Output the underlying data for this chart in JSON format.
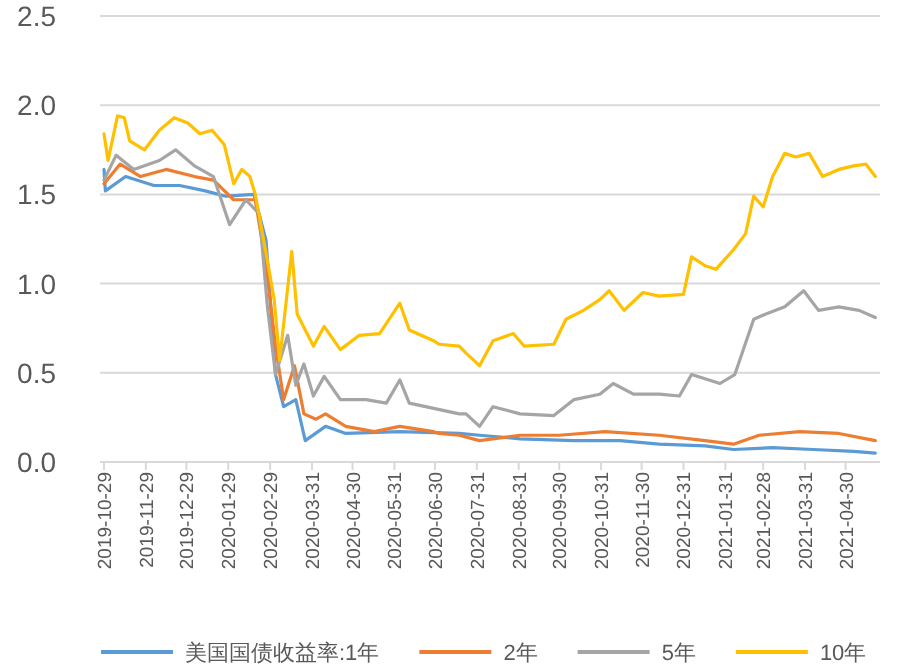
{
  "chart_data": {
    "type": "line",
    "xlim": [
      "2019-10-29",
      "2021-05-24"
    ],
    "xticks": [
      "2019-10-29",
      "2019-11-29",
      "2019-12-29",
      "2020-01-29",
      "2020-02-29",
      "2020-03-31",
      "2020-04-30",
      "2020-05-31",
      "2020-06-30",
      "2020-07-31",
      "2020-08-31",
      "2020-09-30",
      "2020-10-31",
      "2020-11-30",
      "2020-12-31",
      "2021-01-31",
      "2021-02-28",
      "2021-03-31",
      "2021-04-30"
    ],
    "ylim": [
      0,
      2.5
    ],
    "yticks": [
      {
        "value": 0,
        "label": "0.0"
      },
      {
        "value": 0.5,
        "label": "0.5"
      },
      {
        "value": 1,
        "label": "1.0"
      },
      {
        "value": 1.5,
        "label": "1.5"
      },
      {
        "value": 2,
        "label": "2.0"
      },
      {
        "value": 2.5,
        "label": "2.5"
      }
    ],
    "grid": "y",
    "legend": "bottom",
    "marker": "none",
    "line_style": "solid",
    "series": [
      {
        "name": "美国国债收益率:1年",
        "color": "#5b9bd5",
        "x": [
          "2019-10-29",
          "2019-10-30",
          "2019-11-14",
          "2019-12-05",
          "2019-12-24",
          "2020-01-12",
          "2020-01-27",
          "2020-02-17",
          "2020-02-26",
          "2020-03-04",
          "2020-03-10",
          "2020-03-19",
          "2020-03-26",
          "2020-04-10",
          "2020-04-25",
          "2020-06-04",
          "2020-07-18",
          "2020-08-02",
          "2020-09-01",
          "2020-10-11",
          "2020-11-14",
          "2020-12-13",
          "2021-01-16",
          "2021-02-06",
          "2021-03-07",
          "2021-04-06",
          "2021-05-06",
          "2021-05-22"
        ],
        "values": [
          1.64,
          1.52,
          1.6,
          1.55,
          1.55,
          1.52,
          1.49,
          1.5,
          1.24,
          0.49,
          0.31,
          0.35,
          0.12,
          0.2,
          0.16,
          0.17,
          0.16,
          0.15,
          0.13,
          0.12,
          0.12,
          0.1,
          0.09,
          0.07,
          0.08,
          0.07,
          0.06,
          0.05
        ]
      },
      {
        "name": "2年",
        "color": "#ed7d31",
        "x": [
          "2019-10-29",
          "2019-11-10",
          "2019-11-25",
          "2019-12-14",
          "2020-01-04",
          "2020-01-18",
          "2020-02-02",
          "2020-02-18",
          "2020-02-26",
          "2020-03-04",
          "2020-03-10",
          "2020-03-18",
          "2020-03-25",
          "2020-04-03",
          "2020-04-10",
          "2020-04-25",
          "2020-05-16",
          "2020-06-04",
          "2020-06-29",
          "2020-07-03",
          "2020-07-18",
          "2020-08-02",
          "2020-09-01",
          "2020-09-30",
          "2020-11-03",
          "2020-12-13",
          "2021-01-16",
          "2021-02-06",
          "2021-02-25",
          "2021-03-27",
          "2021-04-25",
          "2021-05-22"
        ],
        "values": [
          1.56,
          1.67,
          1.6,
          1.64,
          1.6,
          1.58,
          1.47,
          1.47,
          1.1,
          0.65,
          0.35,
          0.54,
          0.27,
          0.24,
          0.27,
          0.2,
          0.17,
          0.2,
          0.17,
          0.16,
          0.15,
          0.12,
          0.15,
          0.15,
          0.17,
          0.15,
          0.12,
          0.1,
          0.15,
          0.17,
          0.16,
          0.12
        ]
      },
      {
        "name": "5年",
        "color": "#a5a5a5",
        "x": [
          "2019-10-29",
          "2019-11-07",
          "2019-11-20",
          "2019-12-09",
          "2019-12-21",
          "2020-01-04",
          "2020-01-18",
          "2020-01-30",
          "2020-02-11",
          "2020-02-21",
          "2020-02-27",
          "2020-03-04",
          "2020-03-13",
          "2020-03-19",
          "2020-03-25",
          "2020-04-01",
          "2020-04-09",
          "2020-04-21",
          "2020-05-10",
          "2020-05-25",
          "2020-06-04",
          "2020-06-11",
          "2020-07-18",
          "2020-07-23",
          "2020-08-02",
          "2020-08-12",
          "2020-09-01",
          "2020-09-26",
          "2020-10-11",
          "2020-10-30",
          "2020-11-09",
          "2020-11-24",
          "2020-12-13",
          "2020-12-28",
          "2021-01-06",
          "2021-01-27",
          "2021-02-07",
          "2021-02-21",
          "2021-03-02",
          "2021-03-16",
          "2021-03-30",
          "2021-04-10",
          "2021-04-25",
          "2021-05-10",
          "2021-05-22"
        ],
        "values": [
          1.58,
          1.72,
          1.64,
          1.69,
          1.75,
          1.66,
          1.6,
          1.33,
          1.47,
          1.39,
          0.87,
          0.49,
          0.71,
          0.43,
          0.55,
          0.37,
          0.48,
          0.35,
          0.35,
          0.33,
          0.46,
          0.33,
          0.27,
          0.27,
          0.2,
          0.31,
          0.27,
          0.26,
          0.35,
          0.38,
          0.44,
          0.38,
          0.38,
          0.37,
          0.49,
          0.44,
          0.49,
          0.8,
          0.83,
          0.87,
          0.96,
          0.85,
          0.87,
          0.85,
          0.81
        ]
      },
      {
        "name": "10年",
        "color": "#ffc000",
        "x": [
          "2019-10-29",
          "2019-11-01",
          "2019-11-08",
          "2019-11-13",
          "2019-11-17",
          "2019-11-28",
          "2019-12-09",
          "2019-12-20",
          "2019-12-30",
          "2020-01-08",
          "2020-01-17",
          "2020-01-26",
          "2020-02-02",
          "2020-02-08",
          "2020-02-14",
          "2020-02-18",
          "2020-02-26",
          "2020-03-03",
          "2020-03-07",
          "2020-03-16",
          "2020-03-20",
          "2020-04-01",
          "2020-04-09",
          "2020-04-21",
          "2020-05-05",
          "2020-05-20",
          "2020-06-04",
          "2020-06-11",
          "2020-06-29",
          "2020-07-03",
          "2020-07-18",
          "2020-07-23",
          "2020-08-02",
          "2020-08-12",
          "2020-08-27",
          "2020-09-04",
          "2020-09-26",
          "2020-10-05",
          "2020-10-18",
          "2020-10-30",
          "2020-11-06",
          "2020-11-17",
          "2020-12-01",
          "2020-12-13",
          "2020-12-31",
          "2021-01-06",
          "2021-01-16",
          "2021-01-24",
          "2021-02-06",
          "2021-02-15",
          "2021-02-21",
          "2021-02-28",
          "2021-03-07",
          "2021-03-16",
          "2021-03-24",
          "2021-04-03",
          "2021-04-13",
          "2021-04-25",
          "2021-05-06",
          "2021-05-15",
          "2021-05-22"
        ],
        "values": [
          1.84,
          1.69,
          1.94,
          1.93,
          1.8,
          1.75,
          1.86,
          1.93,
          1.9,
          1.84,
          1.86,
          1.78,
          1.56,
          1.64,
          1.6,
          1.5,
          1.17,
          0.91,
          0.57,
          1.18,
          0.83,
          0.65,
          0.76,
          0.63,
          0.71,
          0.72,
          0.89,
          0.74,
          0.68,
          0.66,
          0.65,
          0.61,
          0.54,
          0.68,
          0.72,
          0.65,
          0.66,
          0.8,
          0.85,
          0.91,
          0.96,
          0.85,
          0.95,
          0.93,
          0.94,
          1.15,
          1.1,
          1.08,
          1.19,
          1.28,
          1.49,
          1.43,
          1.6,
          1.73,
          1.71,
          1.73,
          1.6,
          1.64,
          1.66,
          1.67,
          1.6
        ]
      }
    ]
  }
}
